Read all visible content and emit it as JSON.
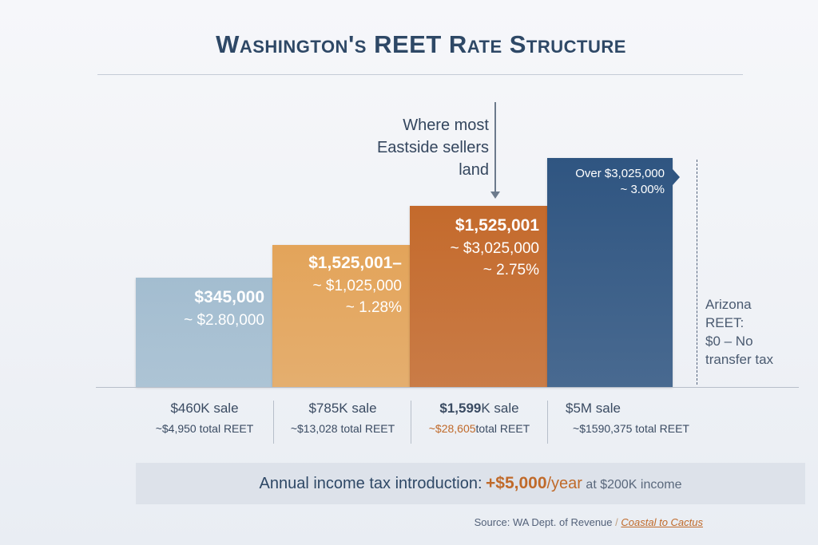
{
  "title": "Washington's REET Rate Structure",
  "chart_data": {
    "type": "bar",
    "title": "Washington's REET Rate Structure",
    "bars": [
      {
        "lines": [
          "$345,000",
          "~ $2.80,000"
        ],
        "rate_percent": null,
        "color": "#a3bdd0"
      },
      {
        "lines": [
          "$1,525,001–",
          "~ $1,025,000",
          "~ 1.28%"
        ],
        "rate_percent": 1.28,
        "color": "#e3a45a"
      },
      {
        "lines": [
          "$1,525,001",
          "~ $3,025,000",
          "~ 2.75%"
        ],
        "rate_percent": 2.75,
        "color": "#c46a2c"
      },
      {
        "lines": [
          "Over $3,025,000",
          "~ 3.00%"
        ],
        "rate_percent": 3.0,
        "color": "#2f5581"
      }
    ],
    "examples": [
      {
        "sale": "$460K sale",
        "reet": "~$4,950 total REET"
      },
      {
        "sale": "$785K sale",
        "reet": "~$13,028 total REET"
      },
      {
        "sale_bold": "$1,599",
        "sale": "K sale",
        "reet_amount": "~$28,605",
        "reet": "total REET"
      },
      {
        "sale": "$5M sale",
        "reet": "~$1590,375 total REET"
      }
    ],
    "callout": [
      "Where most",
      "Eastside sellers",
      "land"
    ],
    "arizona": [
      "Arizona",
      "REET:",
      "$0 – No",
      "transfer tax"
    ]
  },
  "income": {
    "label": "Annual income tax introduction:",
    "amount": "+$5,000",
    "unit": "/year",
    "suffix": "at $200K income"
  },
  "source": {
    "text": "Source: WA Dept. of Revenue",
    "sep": "/",
    "brand": "Coastal to Cactus"
  },
  "colors": {
    "accent": "#c46a2c",
    "navy": "#2e4866"
  }
}
